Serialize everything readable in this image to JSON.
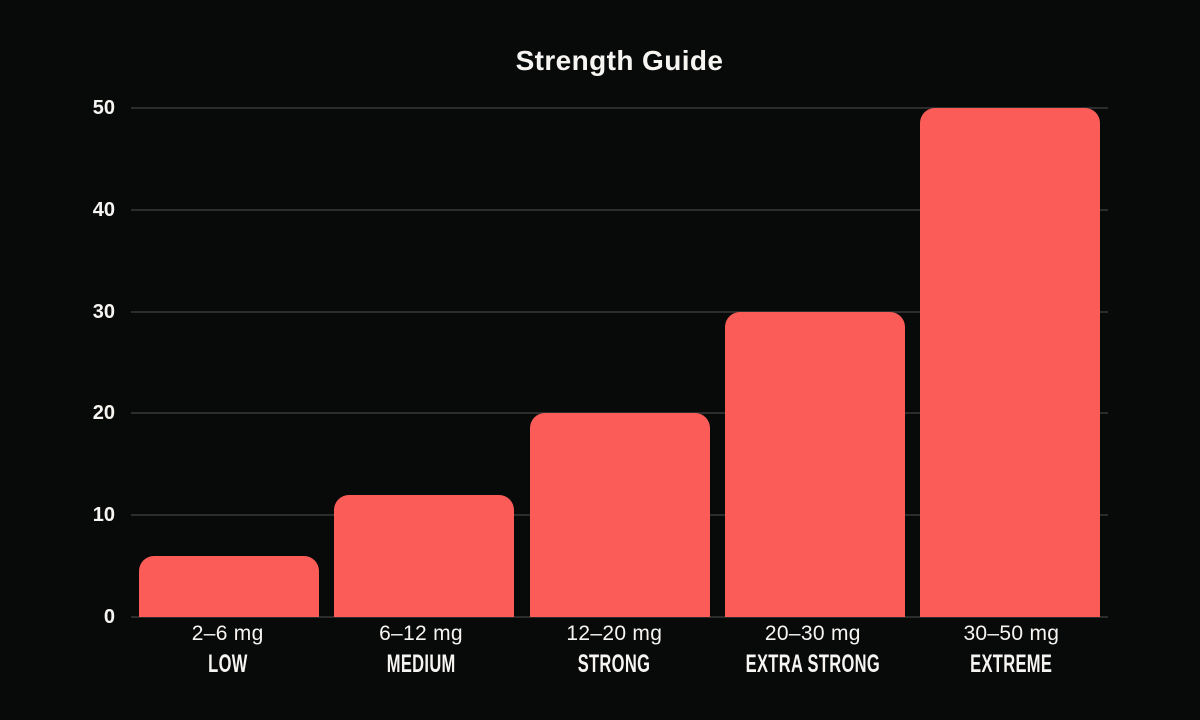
{
  "page": {
    "background": "#080909",
    "text_color": "#f7f5f2"
  },
  "chart_data": {
    "type": "bar",
    "title": "Strength Guide",
    "categories": [
      "2–6 mg",
      "6–12 mg",
      "12–20 mg",
      "20–30 mg",
      "30–50 mg"
    ],
    "category_sublabels": [
      "LOW",
      "MEDIUM",
      "STRONG",
      "EXTRA STRONG",
      "EXTREME"
    ],
    "values": [
      6,
      12,
      20,
      30,
      50
    ],
    "ylim": [
      0,
      50
    ],
    "yticks": [
      0,
      10,
      20,
      30,
      40,
      50
    ],
    "grid": "horizontal",
    "legend_position": "none",
    "xlabel": "",
    "ylabel": "",
    "bar_color": "#fb5c57",
    "grid_color": "#2b2c2b",
    "background_color": "#080909"
  }
}
